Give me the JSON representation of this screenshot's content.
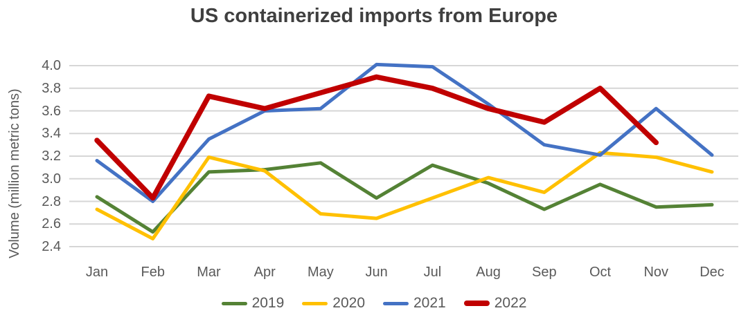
{
  "chart_data": {
    "type": "line",
    "title": "US containerized imports from Europe",
    "ylabel": "Volume (million metric tons)",
    "xlabel": "",
    "categories": [
      "Jan",
      "Feb",
      "Mar",
      "Apr",
      "May",
      "Jun",
      "Jul",
      "Aug",
      "Sep",
      "Oct",
      "Nov",
      "Dec"
    ],
    "y_ticks": [
      2.4,
      2.6,
      2.8,
      3.0,
      3.2,
      3.4,
      3.6,
      3.8,
      4.0
    ],
    "ylim": [
      2.4,
      4.0
    ],
    "grid": true,
    "legend_position": "bottom",
    "colors": {
      "title_text": "#3f3f3f",
      "axis_text": "#595959",
      "gridline": "#d6d6d6"
    },
    "series": [
      {
        "name": "2019",
        "color": "#548235",
        "thick": false,
        "values": [
          2.84,
          2.53,
          3.06,
          3.08,
          3.14,
          2.83,
          3.12,
          2.96,
          2.73,
          2.95,
          2.75,
          2.77
        ]
      },
      {
        "name": "2020",
        "color": "#FFC000",
        "thick": false,
        "values": [
          2.73,
          2.47,
          3.19,
          3.07,
          2.69,
          2.65,
          2.83,
          3.01,
          2.88,
          3.23,
          3.19,
          3.06
        ]
      },
      {
        "name": "2021",
        "color": "#4472C4",
        "thick": false,
        "values": [
          3.16,
          2.8,
          3.35,
          3.6,
          3.62,
          4.01,
          3.99,
          3.66,
          3.3,
          3.21,
          3.62,
          3.21
        ]
      },
      {
        "name": "2022",
        "color": "#C00000",
        "thick": true,
        "values": [
          3.34,
          2.83,
          3.73,
          3.62,
          3.76,
          3.9,
          3.8,
          3.62,
          3.5,
          3.8,
          3.32,
          null
        ]
      }
    ]
  }
}
